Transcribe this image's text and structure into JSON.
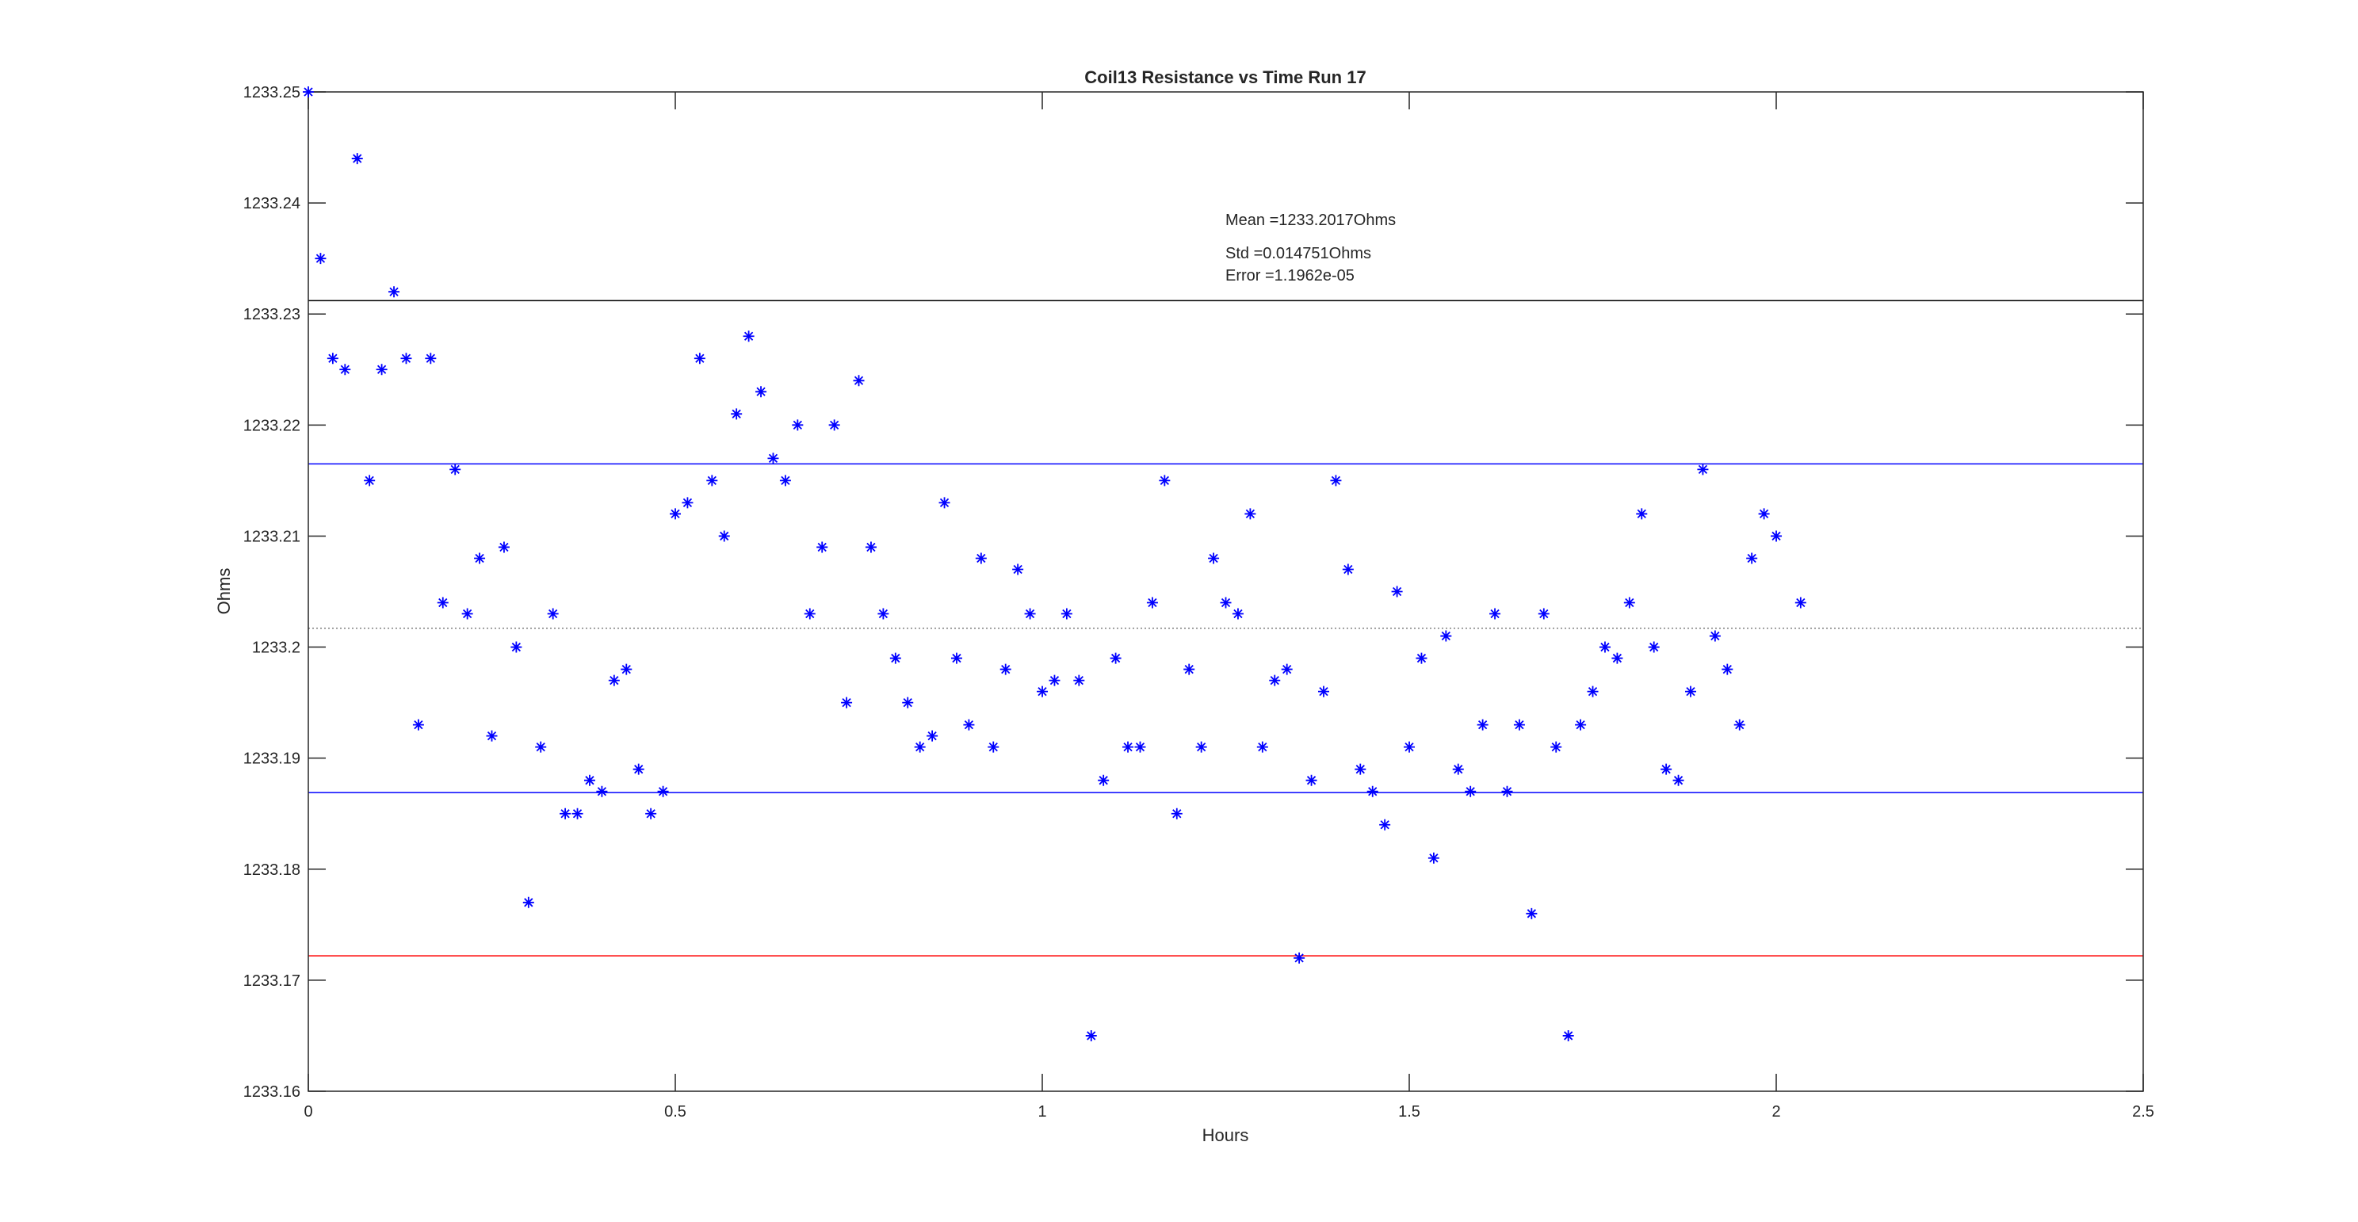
{
  "chart_data": {
    "type": "scatter",
    "title": "Coil13 Resistance vs Time Run 17",
    "xlabel": "Hours",
    "ylabel": "Ohms",
    "xlim": [
      0,
      2.5
    ],
    "ylim": [
      1233.16,
      1233.25
    ],
    "xticks": [
      "0",
      "0.5",
      "1",
      "1.5",
      "2",
      "2.5"
    ],
    "yticks": [
      "1233.16",
      "1233.17",
      "1233.18",
      "1233.19",
      "1233.2",
      "1233.21",
      "1233.22",
      "1233.23",
      "1233.24",
      "1233.25"
    ],
    "grid": false,
    "marker": "*",
    "marker_color": "#0000ff",
    "annotations": {
      "mean": "Mean =1233.2017Ohms",
      "std": "Std =0.014751Ohms",
      "error": "Error =1.1962e-05"
    },
    "reference_lines": [
      {
        "y": 1233.2017,
        "color": "#808080",
        "style": "dotted"
      },
      {
        "y": 1233.2165,
        "color": "#0000ff",
        "style": "solid"
      },
      {
        "y": 1233.1869,
        "color": "#0000ff",
        "style": "solid"
      },
      {
        "y": 1233.2312,
        "color": "#000000",
        "style": "solid"
      },
      {
        "y": 1233.1722,
        "color": "#ff0000",
        "style": "solid"
      }
    ],
    "values": [
      1233.25,
      1233.235,
      1233.226,
      1233.225,
      1233.244,
      1233.215,
      1233.225,
      1233.232,
      1233.226,
      1233.193,
      1233.226,
      1233.204,
      1233.216,
      1233.203,
      1233.208,
      1233.192,
      1233.209,
      1233.2,
      1233.177,
      1233.191,
      1233.203,
      1233.185,
      1233.185,
      1233.188,
      1233.187,
      1233.197,
      1233.198,
      1233.189,
      1233.185,
      1233.187,
      1233.212,
      1233.213,
      1233.226,
      1233.215,
      1233.21,
      1233.221,
      1233.228,
      1233.223,
      1233.217,
      1233.215,
      1233.22,
      1233.203,
      1233.209,
      1233.22,
      1233.195,
      1233.224,
      1233.209,
      1233.203,
      1233.199,
      1233.195,
      1233.191,
      1233.192,
      1233.213,
      1233.199,
      1233.193,
      1233.208,
      1233.191,
      1233.198,
      1233.207,
      1233.203,
      1233.196,
      1233.197,
      1233.203,
      1233.197,
      1233.165,
      1233.188,
      1233.199,
      1233.191,
      1233.191,
      1233.204,
      1233.215,
      1233.185,
      1233.198,
      1233.191,
      1233.208,
      1233.204,
      1233.203,
      1233.212,
      1233.191,
      1233.197,
      1233.198,
      1233.172,
      1233.188,
      1233.196,
      1233.215,
      1233.207,
      1233.189,
      1233.187,
      1233.184,
      1233.205,
      1233.191,
      1233.199,
      1233.181,
      1233.201,
      1233.189,
      1233.187,
      1233.193,
      1233.203,
      1233.187,
      1233.193,
      1233.176,
      1233.203,
      1233.191,
      1233.165,
      1233.193,
      1233.196,
      1233.2,
      1233.199,
      1233.204,
      1233.212,
      1233.2,
      1233.189,
      1233.188,
      1233.196,
      1233.216,
      1233.201,
      1233.198,
      1233.193,
      1233.208,
      1233.212,
      1233.21,
      1233.204
    ],
    "x_step_hours": 0.016667,
    "x_last": 2.0333
  }
}
